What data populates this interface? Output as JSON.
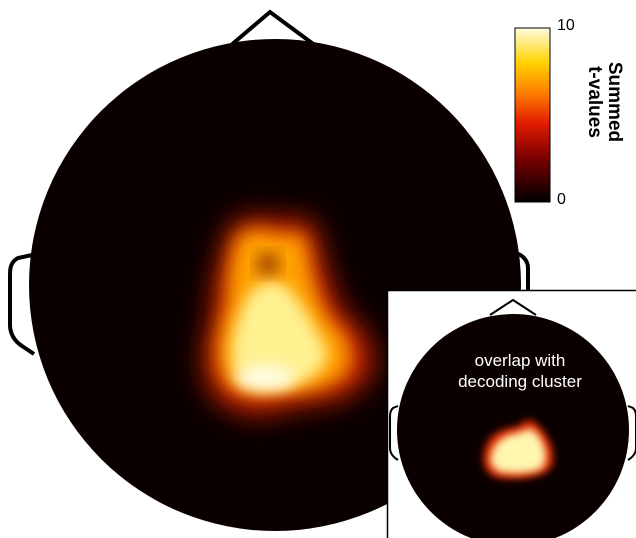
{
  "colorbar": {
    "label": "Summed\nt-values",
    "max_label": "10",
    "min_label": "0",
    "range": [
      0,
      10
    ],
    "colormap": [
      "#000000",
      "#7a0000",
      "#e01b00",
      "#ff7a00",
      "#ffd200",
      "#fffbe0"
    ]
  },
  "main_map": {
    "head_color": "#000000",
    "background": "#0a0000"
  },
  "inset": {
    "label": "overlap with\ndecoding cluster"
  }
}
